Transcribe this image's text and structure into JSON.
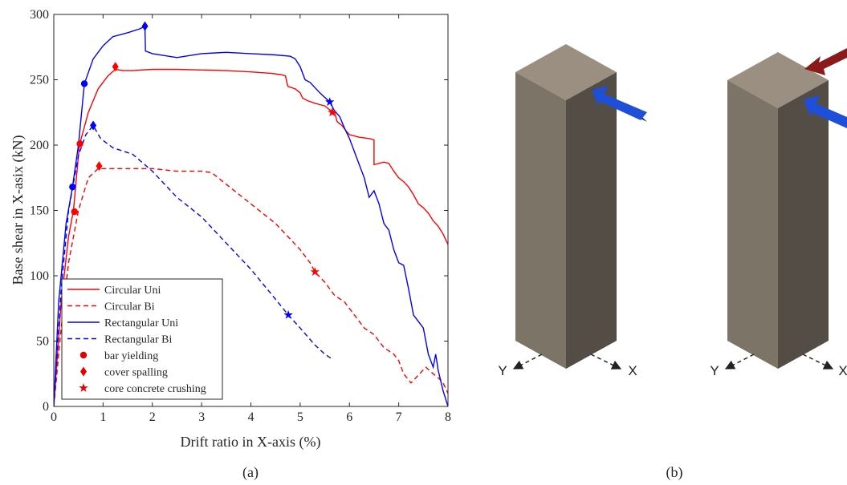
{
  "panel_labels": {
    "a": "(a)",
    "b": "(b)"
  },
  "chart_data": {
    "type": "line",
    "title": "",
    "xlabel": "Drift ratio in X-axis (%)",
    "ylabel": "Base shear in X-asix (kN)",
    "xlim": [
      0,
      8
    ],
    "ylim": [
      0,
      300
    ],
    "xticks": [
      0,
      1,
      2,
      3,
      4,
      5,
      6,
      7,
      8
    ],
    "yticks": [
      0,
      50,
      100,
      150,
      200,
      250,
      300
    ],
    "grid": false,
    "legend_position": "bottom-left",
    "series": [
      {
        "name": "Circular Uni",
        "color": "#ff0000",
        "dash": "solid",
        "points": [
          [
            0,
            0
          ],
          [
            0.15,
            80
          ],
          [
            0.3,
            130
          ],
          [
            0.4,
            150
          ],
          [
            0.52,
            200
          ],
          [
            0.7,
            225
          ],
          [
            0.9,
            243
          ],
          [
            1.1,
            253
          ],
          [
            1.25,
            258
          ],
          [
            1.4,
            257
          ],
          [
            1.6,
            257
          ],
          [
            2,
            258
          ],
          [
            2.5,
            258
          ],
          [
            3,
            257.5
          ],
          [
            3.5,
            257
          ],
          [
            4,
            256
          ],
          [
            4.4,
            255
          ],
          [
            4.6,
            254
          ],
          [
            4.7,
            253
          ],
          [
            4.75,
            245
          ],
          [
            4.9,
            243
          ],
          [
            5,
            240
          ],
          [
            5.05,
            236
          ],
          [
            5.15,
            234
          ],
          [
            5.3,
            232
          ],
          [
            5.4,
            231
          ],
          [
            5.5,
            230
          ],
          [
            5.6,
            227
          ],
          [
            5.7,
            225
          ],
          [
            5.75,
            218
          ],
          [
            5.85,
            215
          ],
          [
            5.95,
            210
          ],
          [
            6,
            208
          ],
          [
            6.2,
            206
          ],
          [
            6.4,
            205
          ],
          [
            6.5,
            204
          ],
          [
            6.5,
            185
          ],
          [
            6.7,
            187
          ],
          [
            6.8,
            186
          ],
          [
            6.9,
            180
          ],
          [
            7.0,
            175
          ],
          [
            7.1,
            172
          ],
          [
            7.2,
            168
          ],
          [
            7.3,
            162
          ],
          [
            7.4,
            155
          ],
          [
            7.5,
            152
          ],
          [
            7.6,
            148
          ],
          [
            7.7,
            142
          ],
          [
            7.75,
            140
          ],
          [
            7.8,
            138
          ],
          [
            7.9,
            132
          ],
          [
            7.95,
            128
          ],
          [
            8,
            124
          ]
        ]
      },
      {
        "name": "Circular Bi",
        "color": "#ff0000",
        "dash": "dashed",
        "points": [
          [
            0,
            0
          ],
          [
            0.15,
            60
          ],
          [
            0.3,
            110
          ],
          [
            0.5,
            150
          ],
          [
            0.7,
            175
          ],
          [
            0.9,
            182
          ],
          [
            1.2,
            182
          ],
          [
            1.5,
            182
          ],
          [
            2,
            182
          ],
          [
            2.5,
            180
          ],
          [
            3,
            180
          ],
          [
            3.2,
            179
          ],
          [
            3.5,
            170
          ],
          [
            4,
            155
          ],
          [
            4.5,
            140
          ],
          [
            5,
            120
          ],
          [
            5.2,
            110
          ],
          [
            5.3,
            103
          ],
          [
            5.5,
            95
          ],
          [
            5.7,
            85
          ],
          [
            5.9,
            80
          ],
          [
            6.1,
            70
          ],
          [
            6.3,
            60
          ],
          [
            6.5,
            55
          ],
          [
            6.7,
            45
          ],
          [
            6.9,
            40
          ],
          [
            7.0,
            35
          ],
          [
            7.1,
            25
          ],
          [
            7.25,
            18
          ],
          [
            7.35,
            22
          ],
          [
            7.5,
            28
          ],
          [
            7.55,
            30
          ],
          [
            7.7,
            25
          ],
          [
            7.8,
            22
          ],
          [
            7.9,
            18
          ],
          [
            8,
            10
          ]
        ]
      },
      {
        "name": "Rectangular Uni",
        "color": "#0000ff",
        "dash": "solid",
        "points": [
          [
            0,
            0
          ],
          [
            0.1,
            80
          ],
          [
            0.25,
            140
          ],
          [
            0.38,
            168
          ],
          [
            0.5,
            200
          ],
          [
            0.62,
            247
          ],
          [
            0.8,
            266
          ],
          [
            1.0,
            276
          ],
          [
            1.2,
            283
          ],
          [
            1.5,
            286
          ],
          [
            1.75,
            289
          ],
          [
            1.85,
            291
          ],
          [
            1.86,
            272
          ],
          [
            2,
            270
          ],
          [
            2.5,
            267
          ],
          [
            3,
            270
          ],
          [
            3.5,
            271
          ],
          [
            4,
            270
          ],
          [
            4.5,
            269
          ],
          [
            4.8,
            268
          ],
          [
            4.9,
            266
          ],
          [
            5,
            260
          ],
          [
            5.1,
            250
          ],
          [
            5.2,
            248
          ],
          [
            5.4,
            240
          ],
          [
            5.6,
            233
          ],
          [
            5.7,
            226
          ],
          [
            5.8,
            222
          ],
          [
            5.9,
            213
          ],
          [
            6.0,
            205
          ],
          [
            6.1,
            195
          ],
          [
            6.2,
            185
          ],
          [
            6.3,
            175
          ],
          [
            6.4,
            160
          ],
          [
            6.5,
            165
          ],
          [
            6.6,
            155
          ],
          [
            6.7,
            140
          ],
          [
            6.8,
            135
          ],
          [
            6.9,
            120
          ],
          [
            7.0,
            110
          ],
          [
            7.1,
            108
          ],
          [
            7.2,
            90
          ],
          [
            7.3,
            70
          ],
          [
            7.4,
            65
          ],
          [
            7.5,
            60
          ],
          [
            7.6,
            40
          ],
          [
            7.7,
            30
          ],
          [
            7.75,
            40
          ],
          [
            7.8,
            28
          ],
          [
            7.9,
            12
          ],
          [
            8,
            0
          ]
        ]
      },
      {
        "name": "Rectangular Bi",
        "color": "#0000ff",
        "dash": "dashed",
        "points": [
          [
            0,
            0
          ],
          [
            0.15,
            90
          ],
          [
            0.3,
            150
          ],
          [
            0.5,
            192
          ],
          [
            0.65,
            208
          ],
          [
            0.8,
            215
          ],
          [
            0.95,
            205
          ],
          [
            1.2,
            198
          ],
          [
            1.6,
            193
          ],
          [
            2,
            180
          ],
          [
            2.5,
            160
          ],
          [
            3,
            145
          ],
          [
            3.5,
            125
          ],
          [
            4,
            105
          ],
          [
            4.5,
            82
          ],
          [
            4.76,
            70
          ],
          [
            5,
            60
          ],
          [
            5.3,
            47
          ],
          [
            5.5,
            40
          ],
          [
            5.66,
            36
          ]
        ]
      }
    ],
    "markers": [
      {
        "series": "Circular Uni",
        "kind": "circle",
        "x": 0.53,
        "y": 201
      },
      {
        "series": "Circular Uni",
        "kind": "diamond",
        "x": 1.25,
        "y": 260
      },
      {
        "series": "Circular Uni",
        "kind": "star",
        "x": 5.65,
        "y": 225
      },
      {
        "series": "Circular Bi",
        "kind": "circle",
        "x": 0.42,
        "y": 149
      },
      {
        "series": "Circular Bi",
        "kind": "diamond",
        "x": 0.92,
        "y": 184
      },
      {
        "series": "Circular Bi",
        "kind": "star",
        "x": 5.3,
        "y": 103
      },
      {
        "series": "Rectangular Uni",
        "kind": "circle",
        "x": 0.62,
        "y": 247
      },
      {
        "series": "Rectangular Uni",
        "kind": "diamond",
        "x": 1.85,
        "y": 291
      },
      {
        "series": "Rectangular Uni",
        "kind": "star",
        "x": 5.6,
        "y": 233
      },
      {
        "series": "Rectangular Bi",
        "kind": "circle",
        "x": 0.38,
        "y": 168
      },
      {
        "series": "Rectangular Bi",
        "kind": "diamond",
        "x": 0.8,
        "y": 215
      },
      {
        "series": "Rectangular Bi",
        "kind": "star",
        "x": 4.76,
        "y": 70
      }
    ],
    "legend": [
      {
        "label": "Circular Uni",
        "type": "line",
        "color": "#ff0000",
        "dash": "solid"
      },
      {
        "label": "Circular Bi",
        "type": "line",
        "color": "#ff0000",
        "dash": "dashed"
      },
      {
        "label": "Rectangular Uni",
        "type": "line",
        "color": "#0000ff",
        "dash": "solid"
      },
      {
        "label": "Rectangular Bi",
        "type": "line",
        "color": "#0000ff",
        "dash": "dashed"
      },
      {
        "label": "bar yielding",
        "type": "circle",
        "color": "#e00000"
      },
      {
        "label": "cover spalling",
        "type": "diamond",
        "color": "#e00000"
      },
      {
        "label": "core concrete crushing",
        "type": "star",
        "color": "#e00000"
      }
    ]
  },
  "diagram": {
    "axis_labels": {
      "y": "Y",
      "x": "X"
    },
    "colors": {
      "column_top": "#9a8f80",
      "column_left": "#7d7468",
      "column_right": "#534d45",
      "arrow_blue": "#1f4fd8",
      "arrow_red": "#8b1a1a"
    },
    "columns": [
      {
        "name": "uniaxial",
        "arrows": [
          "blue"
        ]
      },
      {
        "name": "biaxial",
        "arrows": [
          "blue",
          "red"
        ]
      }
    ]
  }
}
